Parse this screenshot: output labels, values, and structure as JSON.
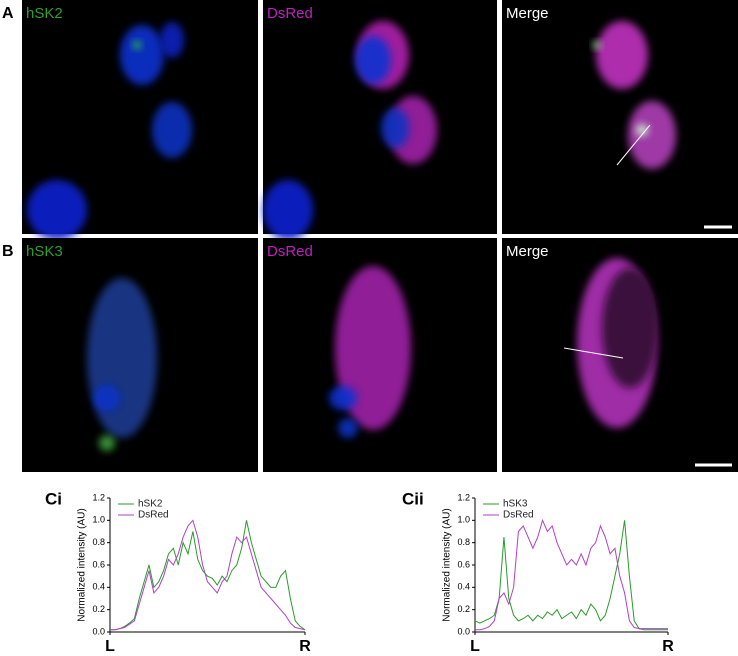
{
  "panels": {
    "rows": [
      {
        "label": "A",
        "images": [
          "hSK2",
          "DsRed",
          "Merge"
        ]
      },
      {
        "label": "B",
        "images": [
          "hSK3",
          "DsRed",
          "Merge"
        ]
      }
    ]
  },
  "chart_data": [
    {
      "type": "line",
      "label": "Ci",
      "y_label": "Normalized intensity (AU)",
      "legend": "upper left",
      "xlim": [
        0,
        1
      ],
      "xticks": [
        {
          "value": 0,
          "label": "L"
        },
        {
          "value": 1,
          "label": "R"
        }
      ],
      "ylim": [
        0,
        1.2
      ],
      "yticks": [
        {
          "value": 0,
          "label": "0.0"
        },
        {
          "value": 0.2,
          "label": "0.2"
        },
        {
          "value": 0.4,
          "label": "0.4"
        },
        {
          "value": 0.6,
          "label": "0.6"
        },
        {
          "value": 0.8,
          "label": "0.8"
        },
        {
          "value": 1,
          "label": "1.0"
        },
        {
          "value": 1.2,
          "label": "1.2"
        }
      ],
      "x": [
        0,
        0.025,
        0.05,
        0.075,
        0.1,
        0.125,
        0.15,
        0.175,
        0.2,
        0.225,
        0.25,
        0.275,
        0.3,
        0.325,
        0.35,
        0.375,
        0.4,
        0.425,
        0.45,
        0.475,
        0.5,
        0.525,
        0.55,
        0.575,
        0.6,
        0.625,
        0.65,
        0.675,
        0.7,
        0.725,
        0.75,
        0.775,
        0.8,
        0.825,
        0.85,
        0.875,
        0.9,
        0.925,
        0.95,
        0.975,
        1
      ],
      "series": [
        {
          "name": "hSK2",
          "color": "#2a9a2a",
          "values": [
            0.02,
            0.02,
            0.03,
            0.05,
            0.08,
            0.12,
            0.3,
            0.45,
            0.6,
            0.4,
            0.45,
            0.55,
            0.7,
            0.75,
            0.6,
            0.8,
            0.7,
            0.9,
            0.65,
            0.55,
            0.5,
            0.48,
            0.42,
            0.5,
            0.45,
            0.55,
            0.6,
            0.75,
            1.0,
            0.8,
            0.65,
            0.5,
            0.45,
            0.4,
            0.4,
            0.5,
            0.55,
            0.3,
            0.1,
            0.05,
            0.02
          ]
        },
        {
          "name": "DsRed",
          "color": "#b040c8",
          "values": [
            0.02,
            0.02,
            0.03,
            0.04,
            0.07,
            0.1,
            0.25,
            0.4,
            0.55,
            0.35,
            0.4,
            0.5,
            0.65,
            0.6,
            0.7,
            0.85,
            0.95,
            1.0,
            0.85,
            0.6,
            0.45,
            0.4,
            0.35,
            0.45,
            0.5,
            0.7,
            0.85,
            0.8,
            0.85,
            0.7,
            0.55,
            0.4,
            0.35,
            0.3,
            0.25,
            0.2,
            0.15,
            0.08,
            0.04,
            0.03,
            0.02
          ]
        }
      ]
    },
    {
      "type": "line",
      "label": "Cii",
      "y_label": "Normalized intensity (AU)",
      "legend": "upper left",
      "xlim": [
        0,
        1
      ],
      "xticks": [
        {
          "value": 0,
          "label": "L"
        },
        {
          "value": 1,
          "label": "R"
        }
      ],
      "ylim": [
        0,
        1.2
      ],
      "yticks": [
        {
          "value": 0,
          "label": "0.0"
        },
        {
          "value": 0.2,
          "label": "0.2"
        },
        {
          "value": 0.4,
          "label": "0.4"
        },
        {
          "value": 0.6,
          "label": "0.6"
        },
        {
          "value": 0.8,
          "label": "0.8"
        },
        {
          "value": 1,
          "label": "1.0"
        },
        {
          "value": 1.2,
          "label": "1.2"
        }
      ],
      "x": [
        0,
        0.025,
        0.05,
        0.075,
        0.1,
        0.125,
        0.15,
        0.175,
        0.2,
        0.225,
        0.25,
        0.275,
        0.3,
        0.325,
        0.35,
        0.375,
        0.4,
        0.425,
        0.45,
        0.475,
        0.5,
        0.525,
        0.55,
        0.575,
        0.6,
        0.625,
        0.65,
        0.675,
        0.7,
        0.725,
        0.75,
        0.775,
        0.8,
        0.825,
        0.85,
        0.875,
        0.9,
        0.925,
        0.95,
        0.975,
        1
      ],
      "series": [
        {
          "name": "hSK3",
          "color": "#2a9a2a",
          "values": [
            0.1,
            0.08,
            0.1,
            0.12,
            0.15,
            0.3,
            0.85,
            0.3,
            0.15,
            0.1,
            0.12,
            0.15,
            0.1,
            0.15,
            0.12,
            0.18,
            0.15,
            0.2,
            0.12,
            0.15,
            0.18,
            0.12,
            0.2,
            0.15,
            0.25,
            0.2,
            0.1,
            0.15,
            0.3,
            0.5,
            0.7,
            1.0,
            0.5,
            0.1,
            0.03,
            0.02,
            0.02,
            0.02,
            0.02,
            0.02,
            0.02
          ]
        },
        {
          "name": "DsRed",
          "color": "#b040c8",
          "values": [
            0.02,
            0.02,
            0.03,
            0.05,
            0.1,
            0.3,
            0.35,
            0.25,
            0.4,
            0.9,
            0.95,
            0.85,
            0.75,
            0.85,
            1.0,
            0.9,
            0.95,
            0.8,
            0.7,
            0.6,
            0.65,
            0.6,
            0.7,
            0.6,
            0.75,
            0.8,
            0.95,
            0.85,
            0.7,
            0.75,
            0.5,
            0.35,
            0.1,
            0.04,
            0.03,
            0.03,
            0.03,
            0.03,
            0.03,
            0.03,
            0.03
          ]
        }
      ]
    }
  ]
}
